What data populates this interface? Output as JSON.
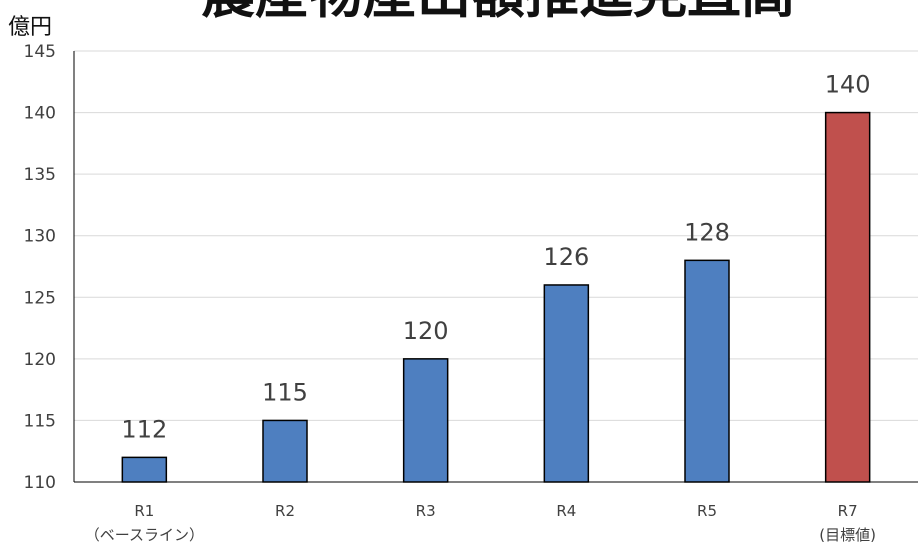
{
  "chart_data": {
    "type": "bar",
    "title": "農産物産出額推進見直高",
    "ylabel": "億円",
    "categories": [
      "R1\n（ベースライン）",
      "R2",
      "R3",
      "R4",
      "R5",
      "R7\n(目標値)"
    ],
    "values": [
      112,
      115,
      120,
      126,
      128,
      140
    ],
    "data_labels": [
      "112",
      "115",
      "120",
      "126",
      "128",
      "140"
    ],
    "yticks": [
      110,
      115,
      120,
      125,
      130,
      135,
      140,
      145
    ],
    "ylim": [
      110,
      145
    ],
    "grid": true,
    "colors": [
      "#4e7fc0",
      "#4e7fc0",
      "#4e7fc0",
      "#4e7fc0",
      "#4e7fc0",
      "#c0504d"
    ]
  }
}
